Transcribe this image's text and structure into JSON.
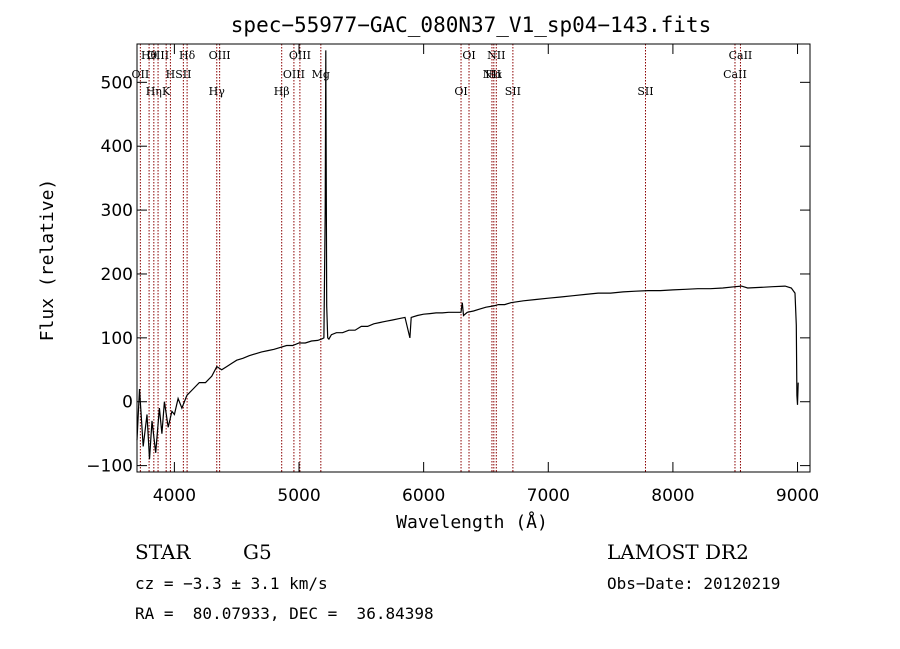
{
  "chart_data": {
    "type": "line",
    "title": "spec−55977−GAC_080N37_V1_sp04−143.fits",
    "xlabel": "Wavelength (Å)",
    "ylabel": "Flux (relative)",
    "xlim": [
      3700,
      9100
    ],
    "ylim": [
      -110,
      560
    ],
    "x_ticks": [
      4000,
      5000,
      6000,
      7000,
      8000,
      9000
    ],
    "y_ticks": [
      -100,
      0,
      100,
      200,
      300,
      400,
      500
    ],
    "y_tick_labels": [
      "−100",
      "0",
      "100",
      "200",
      "300",
      "400",
      "500"
    ],
    "series": [
      {
        "x": [
          3700,
          3720,
          3750,
          3780,
          3800,
          3820,
          3850,
          3880,
          3900,
          3920,
          3950,
          3980,
          4000,
          4030,
          4060,
          4100,
          4150,
          4200,
          4250,
          4300,
          4340,
          4380,
          4420,
          4460,
          4500,
          4550,
          4600,
          4650,
          4700,
          4750,
          4800,
          4850,
          4900,
          4950,
          5000,
          5050,
          5100,
          5150,
          5180,
          5200,
          5210,
          5215,
          5222,
          5230,
          5240,
          5260,
          5300,
          5350,
          5400,
          5450,
          5500,
          5550,
          5600,
          5650,
          5700,
          5750,
          5800,
          5850,
          5890,
          5900,
          5950,
          6000,
          6050,
          6100,
          6150,
          6200,
          6250,
          6300,
          6310,
          6320,
          6350,
          6400,
          6450,
          6500,
          6563,
          6600,
          6650,
          6700,
          6800,
          6900,
          7000,
          7100,
          7200,
          7300,
          7400,
          7500,
          7600,
          7700,
          7800,
          7900,
          8000,
          8100,
          8200,
          8300,
          8400,
          8500,
          8550,
          8600,
          8700,
          8800,
          8900,
          8950,
          8980,
          8990,
          8995,
          9000,
          9005
        ],
        "y": [
          -60,
          20,
          -70,
          -20,
          -90,
          -30,
          -80,
          -10,
          -50,
          0,
          -40,
          -15,
          -20,
          5,
          -10,
          10,
          20,
          30,
          30,
          40,
          55,
          50,
          55,
          60,
          65,
          68,
          72,
          75,
          78,
          80,
          82,
          85,
          88,
          88,
          92,
          92,
          95,
          96,
          98,
          100,
          300,
          550,
          150,
          100,
          98,
          105,
          108,
          108,
          112,
          112,
          118,
          118,
          122,
          124,
          126,
          128,
          130,
          132,
          100,
          132,
          135,
          137,
          138,
          139,
          139,
          140,
          140,
          140,
          155,
          135,
          140,
          142,
          145,
          148,
          150,
          152,
          152,
          155,
          158,
          160,
          162,
          164,
          166,
          168,
          170,
          170,
          172,
          173,
          174,
          174,
          175,
          176,
          177,
          177,
          178,
          180,
          181,
          178,
          179,
          180,
          181,
          178,
          170,
          120,
          10,
          -5,
          30
        ]
      }
    ],
    "lines": [
      {
        "name": "Hθ",
        "wavelength": 3797
      },
      {
        "name": "OII",
        "wavelength": 3727
      },
      {
        "name": "Hη",
        "wavelength": 3835
      },
      {
        "name": "OIII",
        "wavelength": 3869
      },
      {
        "name": "H",
        "wavelength": 3968
      },
      {
        "name": "K",
        "wavelength": 3934
      },
      {
        "name": "Hδ",
        "wavelength": 4102
      },
      {
        "name": "SII",
        "wavelength": 4072
      },
      {
        "name": "Hγ",
        "wavelength": 4340
      },
      {
        "name": "OIII",
        "wavelength": 4363
      },
      {
        "name": "OIII",
        "wavelength": 4959
      },
      {
        "name": "Hβ",
        "wavelength": 4861
      },
      {
        "name": "OIII",
        "wavelength": 5007
      },
      {
        "name": "Mg",
        "wavelength": 5175
      },
      {
        "name": "OI",
        "wavelength": 6300
      },
      {
        "name": "OI",
        "wavelength": 6364
      },
      {
        "name": "Hα",
        "wavelength": 6563
      },
      {
        "name": "SII",
        "wavelength": 6716
      },
      {
        "name": "NII",
        "wavelength": 6583
      },
      {
        "name": "NII",
        "wavelength": 6548
      },
      {
        "name": "SII",
        "wavelength": 7780
      },
      {
        "name": "CaII",
        "wavelength": 8542
      },
      {
        "name": "CaII",
        "wavelength": 8498
      }
    ]
  },
  "info": {
    "class": "STAR",
    "subclass": "G5",
    "survey": "LAMOST DR2",
    "cz": "cz = −3.3 ± 3.1 km/s",
    "obs_date": "Obs−Date: 20120219",
    "coords": "RA =  80.07933, DEC =  36.84398"
  },
  "colors": {
    "line_marker": "#8b0000",
    "spectrum": "#000000"
  }
}
